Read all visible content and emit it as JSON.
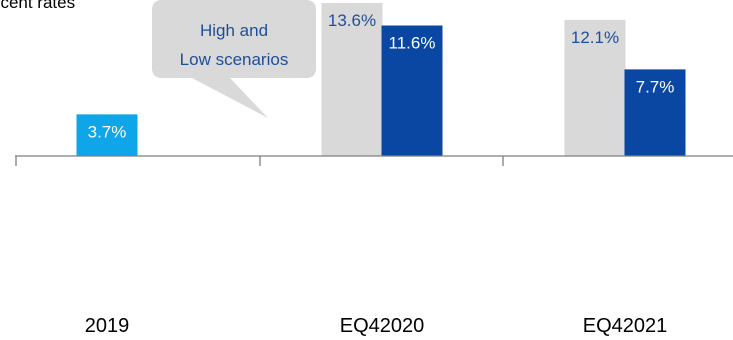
{
  "chart_data": {
    "type": "bar",
    "categories": [
      "2019",
      "EQ42020",
      "EQ42021"
    ],
    "series": [
      {
        "values": [
          3.7,
          null,
          null
        ],
        "labels": [
          "3.7%",
          null,
          null
        ],
        "color": "#0ea5e9",
        "label_color": "#ffffff"
      },
      {
        "values": [
          null,
          13.6,
          12.1
        ],
        "labels": [
          null,
          "13.6%",
          "12.1%"
        ],
        "color": "#d9d9d9",
        "label_color": "#1f4e99"
      },
      {
        "values": [
          null,
          11.6,
          7.7
        ],
        "labels": [
          null,
          "11.6%",
          "7.7%"
        ],
        "color": "#0a47a3",
        "label_color": "#ffffff"
      }
    ],
    "title": "",
    "xlabel": "",
    "ylabel": "",
    "ylim": [
      0,
      14.5
    ],
    "grid": false,
    "legend": "none"
  },
  "callout": {
    "line1": "High and",
    "line2": "Low scenarios"
  },
  "corner_text": "Percent rates"
}
